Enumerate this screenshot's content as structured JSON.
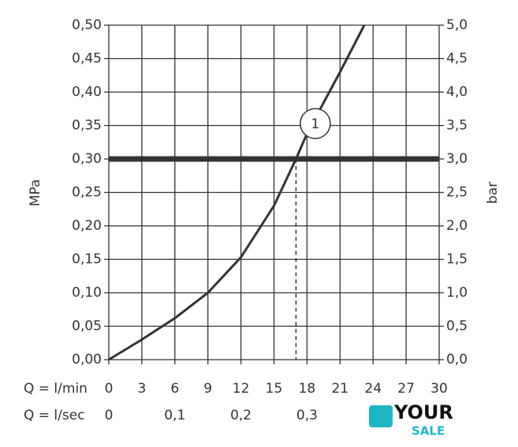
{
  "chart_data": {
    "type": "line",
    "x": [
      0,
      3,
      6,
      9,
      12,
      15,
      17,
      18,
      21,
      23.2
    ],
    "values": [
      0,
      0.03,
      0.062,
      0.1,
      0.153,
      0.23,
      0.3,
      0.338,
      0.43,
      0.5
    ],
    "color": "#333333",
    "xlabel": "Q = l/min",
    "x2label": "Q = l/sec",
    "ylabel": "MPa",
    "y2label": "bar",
    "xlim": [
      0,
      30
    ],
    "xticks": [
      0,
      3,
      6,
      9,
      12,
      15,
      18,
      21,
      24,
      27,
      30
    ],
    "x2lim": [
      0,
      0.5
    ],
    "x2ticks": [
      0,
      {
        "value": 0.1,
        "label": "0,1"
      },
      {
        "value": 0.2,
        "label": "0,2"
      },
      {
        "value": 0.3,
        "label": "0,3"
      }
    ],
    "ylim": [
      0,
      0.5
    ],
    "yticks": [
      {
        "value": 0,
        "label": "0,00"
      },
      {
        "value": 0.05,
        "label": "0,05"
      },
      {
        "value": 0.1,
        "label": "0,10"
      },
      {
        "value": 0.15,
        "label": "0,15"
      },
      {
        "value": 0.2,
        "label": "0,20"
      },
      {
        "value": 0.25,
        "label": "0,25"
      },
      {
        "value": 0.3,
        "label": "0,30"
      },
      {
        "value": 0.35,
        "label": "0,35"
      },
      {
        "value": 0.4,
        "label": "0,40"
      },
      {
        "value": 0.45,
        "label": "0,45"
      },
      {
        "value": 0.5,
        "label": "0,50"
      }
    ],
    "y2lim": [
      0,
      5
    ],
    "y2ticks": [
      {
        "value": 0,
        "label": "0,0"
      },
      {
        "value": 0.5,
        "label": "0,5"
      },
      {
        "value": 1,
        "label": "1,0"
      },
      {
        "value": 1.5,
        "label": "1,5"
      },
      {
        "value": 2,
        "label": "2,0"
      },
      {
        "value": 2.5,
        "label": "2,5"
      },
      {
        "value": 3,
        "label": "3,0"
      },
      {
        "value": 3.5,
        "label": "3,5"
      },
      {
        "value": 4,
        "label": "4,0"
      },
      {
        "value": 4.5,
        "label": "4,5"
      },
      {
        "value": 5,
        "label": "5,0"
      }
    ],
    "grid": true,
    "reference_line": 0.3,
    "marker_x": 17,
    "annotation": {
      "text": "1",
      "x": 18.75,
      "y": 0.353
    }
  },
  "watermark": {
    "line1": "YOUR",
    "line2": "SALE"
  }
}
